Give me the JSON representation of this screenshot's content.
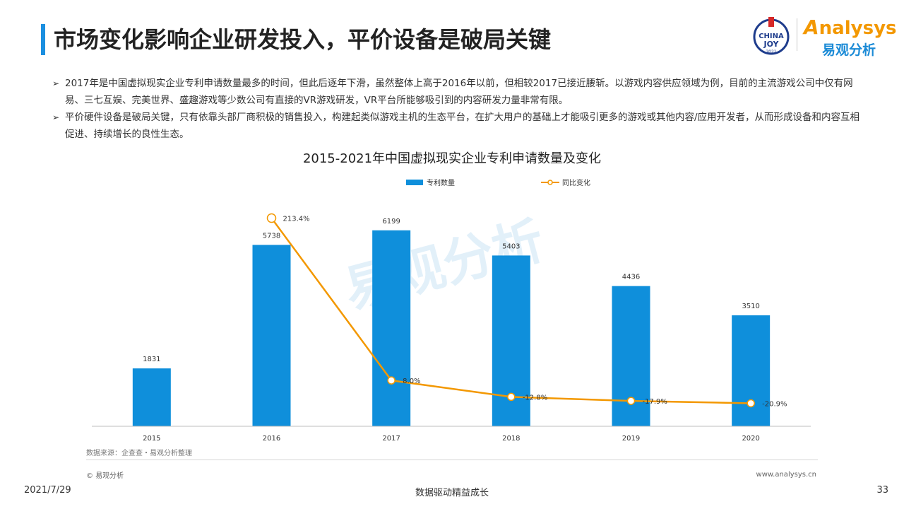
{
  "header": {
    "title": "市场变化影响企业研发投入，平价设备是破局关键",
    "logo_chinajoy_top": "CHINA",
    "logo_chinajoy_mid": "JOY",
    "logo_chinajoy_year": "2021",
    "logo_brand_en": "nalysys",
    "logo_brand_initial": "A",
    "logo_brand_cn": "易观分析"
  },
  "bullets": [
    "2017年是中国虚拟现实企业专利申请数量最多的时间，但此后逐年下滑，虽然整体上高于2016年以前，但相较2017已接近腰斩。以游戏内容供应领域为例，目前的主流游戏公司中仅有网易、三七互娱、完美世界、盛趣游戏等少数公司有直接的VR游戏研发，VR平台所能够吸引到的内容研发力量非常有限。",
    "平价硬件设备是破局关键，只有依靠头部厂商积极的销售投入，构建起类似游戏主机的生态平台，在扩大用户的基础上才能吸引更多的游戏或其他内容/应用开发者，从而形成设备和内容互相促进、持续增长的良性生态。"
  ],
  "bullet_marker": "➢",
  "chart_data": {
    "type": "bar",
    "title": "2015-2021年中国虚拟现实企业专利申请数量及变化",
    "categories": [
      "2015",
      "2016",
      "2017",
      "2018",
      "2019",
      "2020"
    ],
    "series": [
      {
        "name": "专利数量",
        "type": "bar",
        "values": [
          1831,
          5738,
          6199,
          5403,
          4436,
          3510
        ],
        "labels": [
          "1831",
          "5738",
          "6199",
          "5403",
          "4436",
          "3510"
        ],
        "color": "#0f8fdb"
      },
      {
        "name": "同比变化",
        "type": "line",
        "values": [
          null,
          213.4,
          8.0,
          -12.8,
          -17.9,
          -20.9
        ],
        "labels": [
          "",
          "213.4%",
          "8.0%",
          "-12.8%",
          "-17.9%",
          "-20.9%"
        ],
        "color": "#f39800"
      }
    ],
    "ylim_bar": [
      0,
      7000
    ],
    "ylim_line": [
      -50,
      230
    ],
    "legend": "top-center",
    "grid": false
  },
  "watermark_text": "易观分析",
  "footer": {
    "source": "数据来源：企查查・易观分析整理",
    "copyright": "© 易观分析",
    "website": "www.analysys.cn",
    "date": "2021/7/29",
    "slogan": "数据驱动精益成长",
    "page_number": "33"
  }
}
